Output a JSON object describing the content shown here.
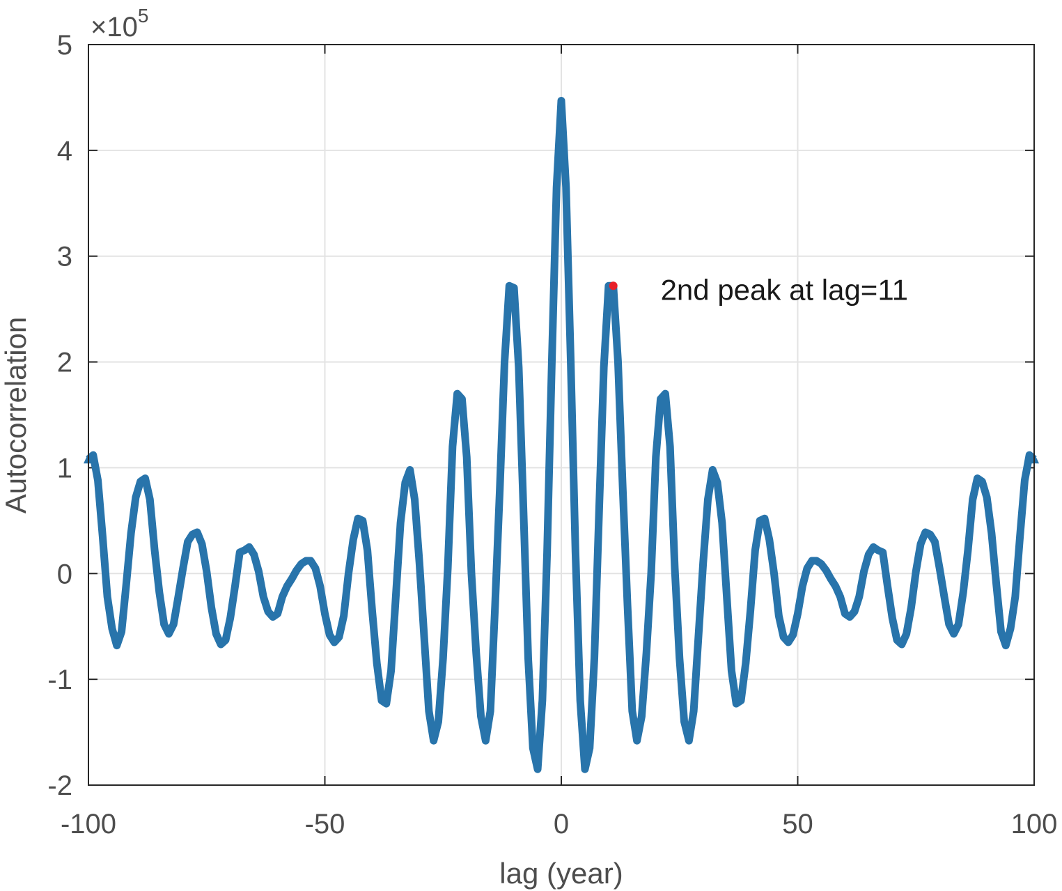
{
  "chart_data": {
    "type": "line",
    "title": "",
    "xlabel": "lag (year)",
    "ylabel": "Autocorrelation",
    "xlim": [
      -100,
      100
    ],
    "ylim": [
      -2,
      5
    ],
    "y_scale_label": "×10",
    "y_scale_exponent": "5",
    "grid": true,
    "x_ticks": [
      -100,
      -50,
      0,
      50,
      100
    ],
    "x_tick_labels": [
      "-100",
      "-50",
      "0",
      "50",
      "100"
    ],
    "y_ticks": [
      -2,
      -1,
      0,
      1,
      2,
      3,
      4,
      5
    ],
    "y_tick_labels": [
      "-2",
      "-1",
      "0",
      "1",
      "2",
      "3",
      "4",
      "5"
    ],
    "series": [
      {
        "name": "autocorrelation",
        "color": "#2874ab",
        "x": [
          -100,
          -99,
          -98,
          -97,
          -96,
          -95,
          -94,
          -93,
          -92,
          -91,
          -90,
          -89,
          -88,
          -87,
          -86,
          -85,
          -84,
          -83,
          -82,
          -81,
          -80,
          -79,
          -78,
          -77,
          -76,
          -75,
          -74,
          -73,
          -72,
          -71,
          -70,
          -69,
          -68,
          -67,
          -66,
          -65,
          -64,
          -63,
          -62,
          -61,
          -60,
          -59,
          -58,
          -57,
          -56,
          -55,
          -54,
          -53,
          -52,
          -51,
          -50,
          -49,
          -48,
          -47,
          -46,
          -45,
          -44,
          -43,
          -42,
          -41,
          -40,
          -39,
          -38,
          -37,
          -36,
          -35,
          -34,
          -33,
          -32,
          -31,
          -30,
          -29,
          -28,
          -27,
          -26,
          -25,
          -24,
          -23,
          -22,
          -21,
          -20,
          -19,
          -18,
          -17,
          -16,
          -15,
          -14,
          -13,
          -12,
          -11,
          -10,
          -9,
          -8,
          -7,
          -6,
          -5,
          -4,
          -3,
          -2,
          -1,
          0,
          1,
          2,
          3,
          4,
          5,
          6,
          7,
          8,
          9,
          10,
          11,
          12,
          13,
          14,
          15,
          16,
          17,
          18,
          19,
          20,
          21,
          22,
          23,
          24,
          25,
          26,
          27,
          28,
          29,
          30,
          31,
          32,
          33,
          34,
          35,
          36,
          37,
          38,
          39,
          40,
          41,
          42,
          43,
          44,
          45,
          46,
          47,
          48,
          49,
          50,
          51,
          52,
          53,
          54,
          55,
          56,
          57,
          58,
          59,
          60,
          61,
          62,
          63,
          64,
          65,
          66,
          67,
          68,
          69,
          70,
          71,
          72,
          73,
          74,
          75,
          76,
          77,
          78,
          79,
          80,
          81,
          82,
          83,
          84,
          85,
          86,
          87,
          88,
          89,
          90,
          91,
          92,
          93,
          94,
          95,
          96,
          97,
          98,
          99,
          100
        ],
        "values": [
          1.08,
          1.12,
          0.88,
          0.35,
          -0.22,
          -0.52,
          -0.68,
          -0.55,
          -0.1,
          0.38,
          0.72,
          0.87,
          0.9,
          0.7,
          0.22,
          -0.18,
          -0.48,
          -0.57,
          -0.48,
          -0.22,
          0.05,
          0.3,
          0.37,
          0.39,
          0.28,
          0.02,
          -0.32,
          -0.57,
          -0.67,
          -0.63,
          -0.42,
          -0.12,
          0.2,
          0.22,
          0.25,
          0.18,
          0.02,
          -0.22,
          -0.36,
          -0.41,
          -0.38,
          -0.22,
          -0.12,
          -0.05,
          0.03,
          0.09,
          0.12,
          0.12,
          0.05,
          -0.12,
          -0.38,
          -0.58,
          -0.65,
          -0.6,
          -0.4,
          0.0,
          0.32,
          0.52,
          0.5,
          0.22,
          -0.35,
          -0.85,
          -1.2,
          -1.23,
          -0.92,
          -0.22,
          0.48,
          0.86,
          0.98,
          0.7,
          0.1,
          -0.6,
          -1.3,
          -1.58,
          -1.4,
          -0.8,
          0.05,
          1.2,
          1.7,
          1.65,
          1.1,
          0.0,
          -0.75,
          -1.35,
          -1.58,
          -1.3,
          -0.3,
          0.8,
          2.0,
          2.72,
          2.7,
          1.95,
          0.6,
          -0.8,
          -1.65,
          -1.85,
          -1.2,
          0.2,
          2.0,
          3.65,
          4.47,
          3.65,
          2.0,
          0.2,
          -1.2,
          -1.85,
          -1.65,
          -0.8,
          0.6,
          1.95,
          2.72,
          2.72,
          2.0,
          0.8,
          -0.3,
          -1.3,
          -1.58,
          -1.35,
          -0.75,
          0.0,
          1.1,
          1.65,
          1.7,
          1.2,
          0.05,
          -0.8,
          -1.4,
          -1.58,
          -1.3,
          -0.6,
          0.1,
          0.7,
          0.98,
          0.86,
          0.48,
          -0.22,
          -0.92,
          -1.23,
          -1.2,
          -0.85,
          -0.35,
          0.22,
          0.5,
          0.52,
          0.32,
          0.0,
          -0.4,
          -0.6,
          -0.65,
          -0.58,
          -0.38,
          -0.12,
          0.05,
          0.12,
          0.12,
          0.09,
          0.03,
          -0.05,
          -0.12,
          -0.22,
          -0.38,
          -0.41,
          -0.36,
          -0.22,
          0.02,
          0.18,
          0.25,
          0.22,
          0.2,
          -0.12,
          -0.42,
          -0.63,
          -0.67,
          -0.57,
          -0.32,
          0.02,
          0.28,
          0.39,
          0.37,
          0.3,
          0.05,
          -0.22,
          -0.48,
          -0.57,
          -0.48,
          -0.18,
          0.22,
          0.7,
          0.9,
          0.87,
          0.72,
          0.38,
          -0.1,
          -0.55,
          -0.68,
          -0.52,
          -0.22,
          0.35,
          0.88,
          1.12,
          1.08
        ]
      }
    ],
    "highlight_point": {
      "x": 11,
      "y": 2.72,
      "color": "#e8202a"
    },
    "annotation": {
      "text": "2nd peak at lag=11",
      "x": 21,
      "y": 2.68
    }
  }
}
